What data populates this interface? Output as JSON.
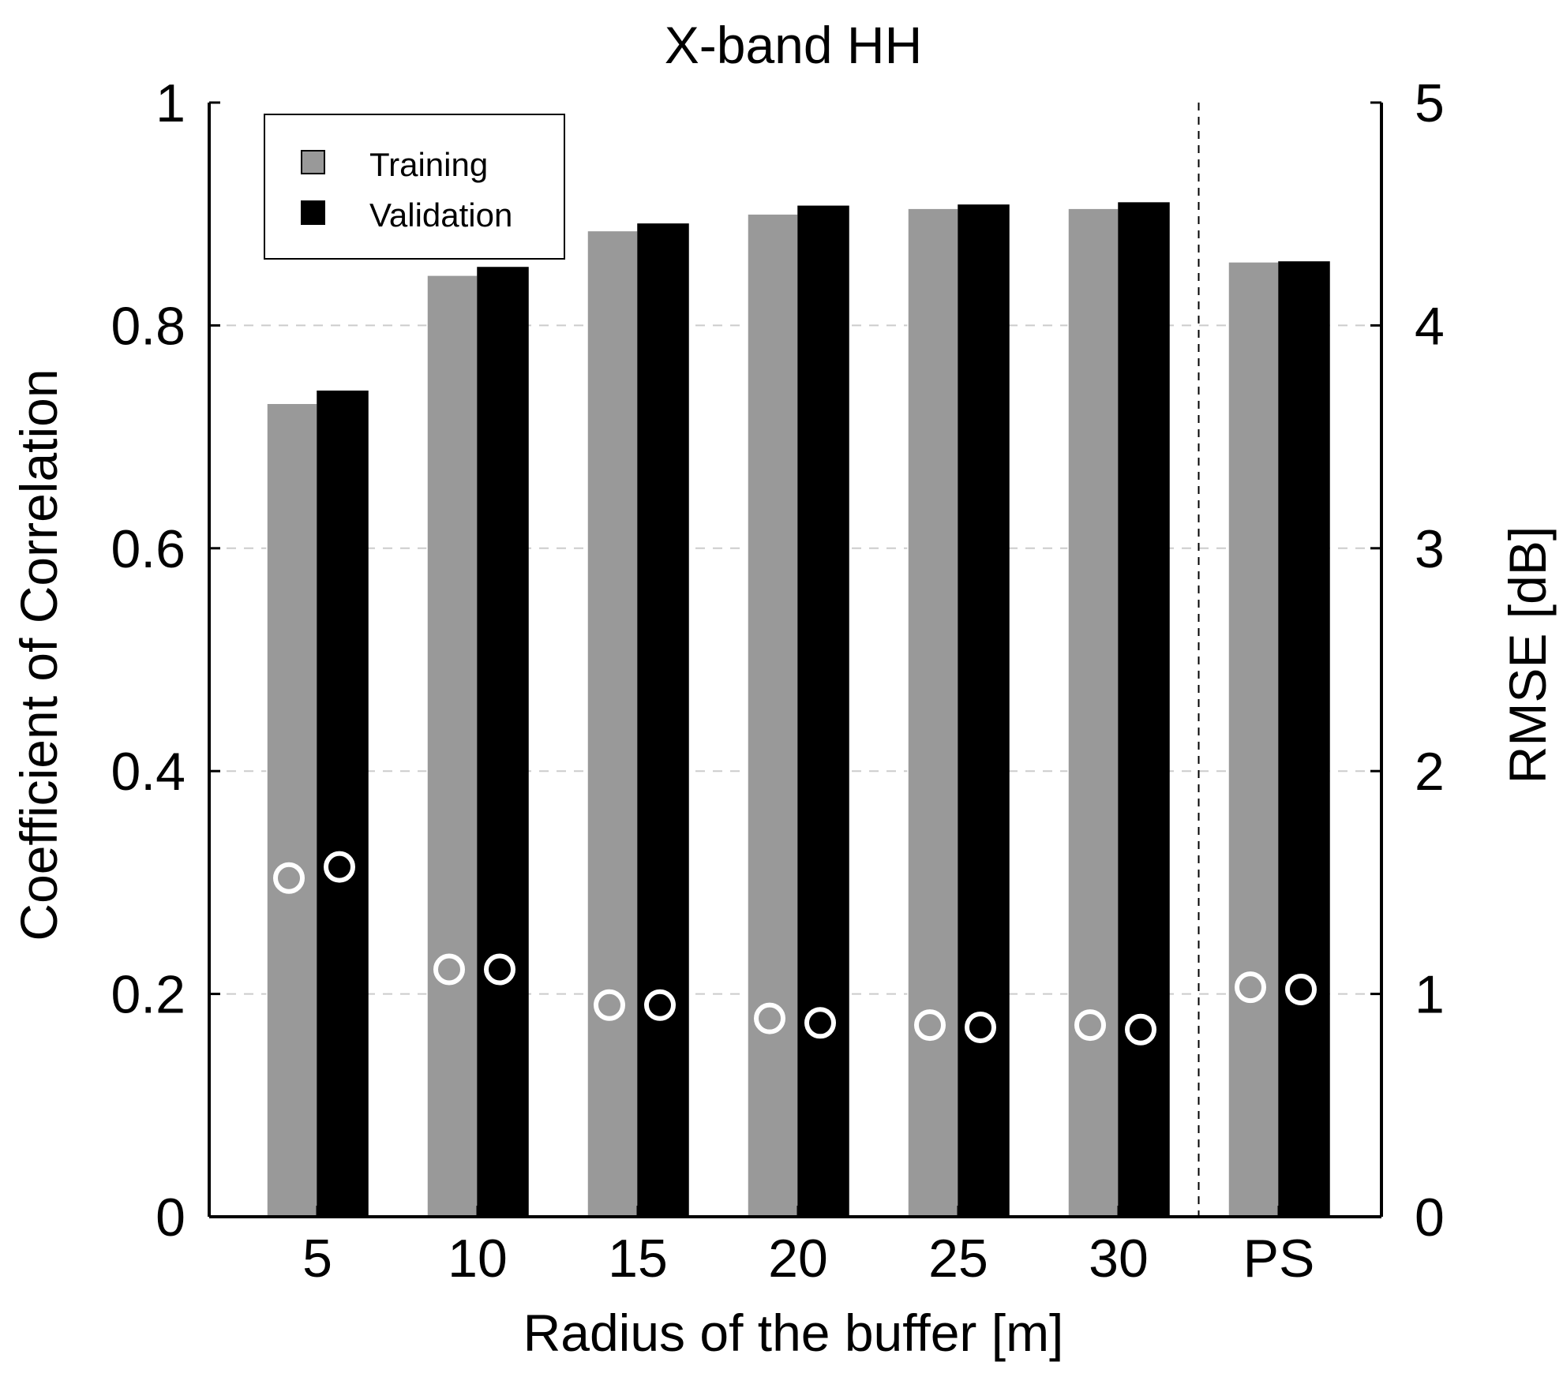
{
  "chart_data": {
    "type": "bar",
    "title": "X-band HH",
    "xlabel": "Radius of the buffer [m]",
    "ylabel": "Coefficient of Correlation",
    "y2label": "RMSE [dB]",
    "categories": [
      "5",
      "10",
      "15",
      "20",
      "25",
      "30",
      "PS"
    ],
    "ylim": [
      0,
      1
    ],
    "y2lim": [
      0,
      5
    ],
    "yticks": [
      "0",
      "0.2",
      "0.4",
      "0.6",
      "0.8",
      "1"
    ],
    "y2ticks": [
      "0",
      "1",
      "2",
      "3",
      "4",
      "5"
    ],
    "grid": "horizontal dashed",
    "legend_position": "top-left",
    "separator_before_category": "PS",
    "series": [
      {
        "name": "Training",
        "color": "#999999",
        "values": [
          0.73,
          0.845,
          0.885,
          0.9,
          0.905,
          0.905,
          0.857
        ],
        "rmse": [
          1.52,
          1.11,
          0.95,
          0.89,
          0.86,
          0.86,
          1.03
        ]
      },
      {
        "name": "Validation",
        "color": "#000000",
        "values": [
          0.741,
          0.852,
          0.891,
          0.907,
          0.908,
          0.91,
          0.857
        ],
        "rmse": [
          1.57,
          1.11,
          0.95,
          0.87,
          0.85,
          0.84,
          1.02
        ]
      }
    ]
  }
}
